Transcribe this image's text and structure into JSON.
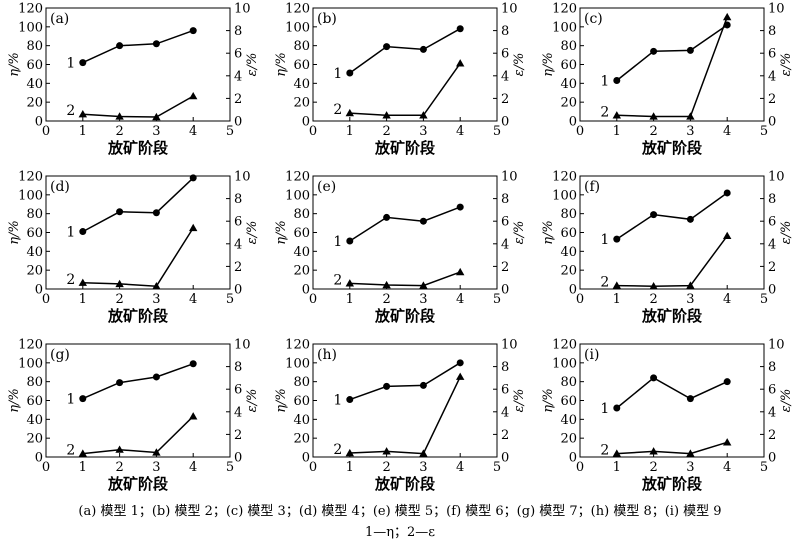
{
  "figure": {
    "caption": "(a) 模型 1；(b) 模型 2；(c) 模型 3；(d) 模型 4；(e) 模型 5；(f) 模型 6；(g) 模型 7；(h) 模型 8；(i) 模型 9",
    "legend": "1—η；2—ε"
  },
  "chart_data": [
    {
      "type": "line",
      "panel": "(a)",
      "xlabel": "放矿阶段",
      "ylabel_left": "η/%",
      "ylabel_right": "ε/%",
      "xlim": [
        0,
        5
      ],
      "xticks": [
        0,
        1,
        2,
        3,
        4,
        5
      ],
      "ylim_left": [
        0,
        120
      ],
      "yticks_left": [
        0,
        20,
        40,
        60,
        80,
        100,
        120
      ],
      "ylim_right": [
        0,
        10
      ],
      "yticks_right": [
        0,
        2,
        4,
        6,
        8,
        10
      ],
      "x": [
        1,
        2,
        3,
        4
      ],
      "series": [
        {
          "name": "1",
          "axis": "left",
          "marker": "circle",
          "values": [
            62,
            80,
            82,
            96
          ]
        },
        {
          "name": "2",
          "axis": "right",
          "marker": "triangle",
          "values": [
            0.6,
            0.4,
            0.35,
            2.2
          ]
        }
      ]
    },
    {
      "type": "line",
      "panel": "(b)",
      "xlabel": "放矿阶段",
      "ylabel_left": "η/%",
      "ylabel_right": "ε/%",
      "xlim": [
        0,
        5
      ],
      "xticks": [
        0,
        1,
        2,
        3,
        4,
        5
      ],
      "ylim_left": [
        0,
        120
      ],
      "yticks_left": [
        0,
        20,
        40,
        60,
        80,
        100,
        120
      ],
      "ylim_right": [
        0,
        10
      ],
      "yticks_right": [
        0,
        2,
        4,
        6,
        8,
        10
      ],
      "x": [
        1,
        2,
        3,
        4
      ],
      "series": [
        {
          "name": "1",
          "axis": "left",
          "marker": "circle",
          "values": [
            51,
            79,
            76,
            98
          ]
        },
        {
          "name": "2",
          "axis": "right",
          "marker": "triangle",
          "values": [
            0.7,
            0.5,
            0.5,
            5.1
          ]
        }
      ]
    },
    {
      "type": "line",
      "panel": "(c)",
      "xlabel": "放矿阶段",
      "ylabel_left": "η/%",
      "ylabel_right": "ε/%",
      "xlim": [
        0,
        5
      ],
      "xticks": [
        0,
        1,
        2,
        3,
        4,
        5
      ],
      "ylim_left": [
        0,
        120
      ],
      "yticks_left": [
        0,
        20,
        40,
        60,
        80,
        100,
        120
      ],
      "ylim_right": [
        0,
        10
      ],
      "yticks_right": [
        0,
        2,
        4,
        6,
        8,
        10
      ],
      "x": [
        1,
        2,
        3,
        4
      ],
      "series": [
        {
          "name": "1",
          "axis": "left",
          "marker": "circle",
          "values": [
            43,
            74,
            75,
            102
          ]
        },
        {
          "name": "2",
          "axis": "right",
          "marker": "triangle",
          "values": [
            0.5,
            0.4,
            0.4,
            9.2
          ]
        }
      ]
    },
    {
      "type": "line",
      "panel": "(d)",
      "xlabel": "放矿阶段",
      "ylabel_left": "η/%",
      "ylabel_right": "ε/%",
      "xlim": [
        0,
        5
      ],
      "xticks": [
        0,
        1,
        2,
        3,
        4,
        5
      ],
      "ylim_left": [
        0,
        120
      ],
      "yticks_left": [
        0,
        20,
        40,
        60,
        80,
        100,
        120
      ],
      "ylim_right": [
        0,
        10
      ],
      "yticks_right": [
        0,
        2,
        4,
        6,
        8,
        10
      ],
      "x": [
        1,
        2,
        3,
        4
      ],
      "series": [
        {
          "name": "1",
          "axis": "left",
          "marker": "circle",
          "values": [
            61,
            82,
            81,
            118
          ]
        },
        {
          "name": "2",
          "axis": "right",
          "marker": "triangle",
          "values": [
            0.55,
            0.45,
            0.25,
            5.4
          ]
        }
      ]
    },
    {
      "type": "line",
      "panel": "(e)",
      "xlabel": "放矿阶段",
      "ylabel_left": "η/%",
      "ylabel_right": "ε/%",
      "xlim": [
        0,
        5
      ],
      "xticks": [
        0,
        1,
        2,
        3,
        4,
        5
      ],
      "ylim_left": [
        0,
        120
      ],
      "yticks_left": [
        0,
        20,
        40,
        60,
        80,
        100,
        120
      ],
      "ylim_right": [
        0,
        10
      ],
      "yticks_right": [
        0,
        2,
        4,
        6,
        8,
        10
      ],
      "x": [
        1,
        2,
        3,
        4
      ],
      "series": [
        {
          "name": "1",
          "axis": "left",
          "marker": "circle",
          "values": [
            51,
            76,
            72,
            87
          ]
        },
        {
          "name": "2",
          "axis": "right",
          "marker": "triangle",
          "values": [
            0.5,
            0.35,
            0.3,
            1.5
          ]
        }
      ]
    },
    {
      "type": "line",
      "panel": "(f)",
      "xlabel": "放矿阶段",
      "ylabel_left": "η/%",
      "ylabel_right": "ε/%",
      "xlim": [
        0,
        5
      ],
      "xticks": [
        0,
        1,
        2,
        3,
        4,
        5
      ],
      "ylim_left": [
        0,
        120
      ],
      "yticks_left": [
        0,
        20,
        40,
        60,
        80,
        100,
        120
      ],
      "ylim_right": [
        0,
        10
      ],
      "yticks_right": [
        0,
        2,
        4,
        6,
        8,
        10
      ],
      "x": [
        1,
        2,
        3,
        4
      ],
      "series": [
        {
          "name": "1",
          "axis": "left",
          "marker": "circle",
          "values": [
            53,
            79,
            74,
            102
          ]
        },
        {
          "name": "2",
          "axis": "right",
          "marker": "triangle",
          "values": [
            0.3,
            0.25,
            0.3,
            4.7
          ]
        }
      ]
    },
    {
      "type": "line",
      "panel": "(g)",
      "xlabel": "放矿阶段",
      "ylabel_left": "η/%",
      "ylabel_right": "ε/%",
      "xlim": [
        0,
        5
      ],
      "xticks": [
        0,
        1,
        2,
        3,
        4,
        5
      ],
      "ylim_left": [
        0,
        120
      ],
      "yticks_left": [
        0,
        20,
        40,
        60,
        80,
        100,
        120
      ],
      "ylim_right": [
        0,
        10
      ],
      "yticks_right": [
        0,
        2,
        4,
        6,
        8,
        10
      ],
      "x": [
        1,
        2,
        3,
        4
      ],
      "series": [
        {
          "name": "1",
          "axis": "left",
          "marker": "circle",
          "values": [
            62,
            79,
            85,
            99
          ]
        },
        {
          "name": "2",
          "axis": "right",
          "marker": "triangle",
          "values": [
            0.3,
            0.65,
            0.4,
            3.6
          ]
        }
      ]
    },
    {
      "type": "line",
      "panel": "(h)",
      "xlabel": "放矿阶段",
      "ylabel_left": "η/%",
      "ylabel_right": "ε/%",
      "xlim": [
        0,
        5
      ],
      "xticks": [
        0,
        1,
        2,
        3,
        4,
        5
      ],
      "ylim_left": [
        0,
        120
      ],
      "yticks_left": [
        0,
        20,
        40,
        60,
        80,
        100,
        120
      ],
      "ylim_right": [
        0,
        10
      ],
      "yticks_right": [
        0,
        2,
        4,
        6,
        8,
        10
      ],
      "x": [
        1,
        2,
        3,
        4
      ],
      "series": [
        {
          "name": "1",
          "axis": "left",
          "marker": "circle",
          "values": [
            61,
            75,
            76,
            100
          ]
        },
        {
          "name": "2",
          "axis": "right",
          "marker": "triangle",
          "values": [
            0.35,
            0.5,
            0.3,
            7.1
          ]
        }
      ]
    },
    {
      "type": "line",
      "panel": "(i)",
      "xlabel": "放矿阶段",
      "ylabel_left": "η/%",
      "ylabel_right": "ε/%",
      "xlim": [
        0,
        5
      ],
      "xticks": [
        0,
        1,
        2,
        3,
        4,
        5
      ],
      "ylim_left": [
        0,
        120
      ],
      "yticks_left": [
        0,
        20,
        40,
        60,
        80,
        100,
        120
      ],
      "ylim_right": [
        0,
        10
      ],
      "yticks_right": [
        0,
        2,
        4,
        6,
        8,
        10
      ],
      "x": [
        1,
        2,
        3,
        4
      ],
      "series": [
        {
          "name": "1",
          "axis": "left",
          "marker": "circle",
          "values": [
            52,
            84,
            62,
            80
          ]
        },
        {
          "name": "2",
          "axis": "right",
          "marker": "triangle",
          "values": [
            0.3,
            0.5,
            0.3,
            1.3
          ]
        }
      ]
    }
  ]
}
